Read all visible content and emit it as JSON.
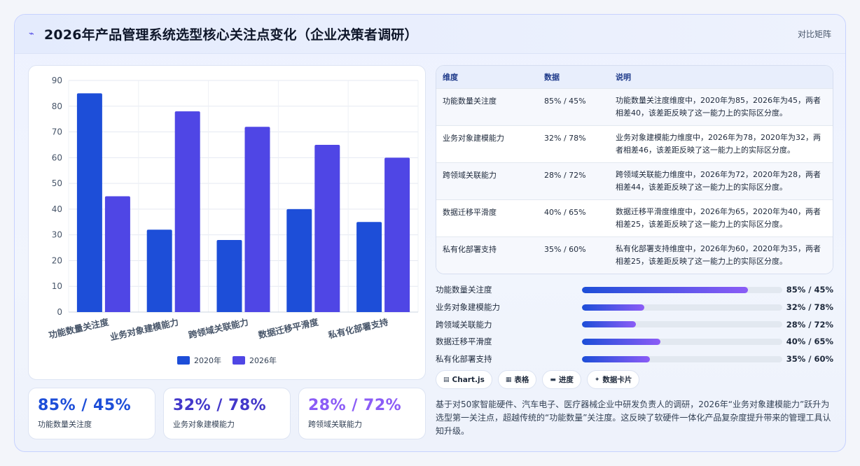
{
  "header": {
    "icon": "bolt-icon",
    "title": "2026年产品管理系统选型核心关注点变化（企业决策者调研）",
    "tag": "对比矩阵"
  },
  "chart_data": {
    "type": "bar",
    "categories": [
      "功能数量关注度",
      "业务对象建模能力",
      "跨领域关联能力",
      "数据迁移平滑度",
      "私有化部署支持"
    ],
    "series": [
      {
        "name": "2020年",
        "values": [
          85,
          32,
          28,
          40,
          35
        ],
        "color": "#1d4ed8"
      },
      {
        "name": "2026年",
        "values": [
          45,
          78,
          72,
          65,
          60
        ],
        "color": "#4f46e5"
      }
    ],
    "ylim": [
      0,
      90
    ],
    "yticks": [
      0,
      10,
      20,
      30,
      40,
      50,
      60,
      70,
      80,
      90
    ],
    "grid": true,
    "legend_position": "bottom"
  },
  "stats": [
    {
      "value": "85% / 45%",
      "label": "功能数量关注度",
      "color": "#1d4ed8"
    },
    {
      "value": "32% / 78%",
      "label": "业务对象建模能力",
      "color": "#4338ca"
    },
    {
      "value": "28% / 72%",
      "label": "跨领域关联能力",
      "color": "#8b5cf6"
    }
  ],
  "table": {
    "headers": [
      "维度",
      "数据",
      "说明"
    ],
    "rows": [
      {
        "dim": "功能数量关注度",
        "data": "85% / 45%",
        "desc": "功能数量关注度维度中，2020年为85，2026年为45，两者相差40，该差距反映了这一能力上的实际区分度。"
      },
      {
        "dim": "业务对象建模能力",
        "data": "32% / 78%",
        "desc": "业务对象建模能力维度中，2026年为78，2020年为32，两者相差46，该差距反映了这一能力上的实际区分度。"
      },
      {
        "dim": "跨领域关联能力",
        "data": "28% / 72%",
        "desc": "跨领域关联能力维度中，2026年为72，2020年为28，两者相差44，该差距反映了这一能力上的实际区分度。"
      },
      {
        "dim": "数据迁移平滑度",
        "data": "40% / 65%",
        "desc": "数据迁移平滑度维度中，2026年为65，2020年为40，两者相差25，该差距反映了这一能力上的实际区分度。"
      },
      {
        "dim": "私有化部署支持",
        "data": "35% / 60%",
        "desc": "私有化部署支持维度中，2026年为60，2020年为35，两者相差25，该差距反映了这一能力上的实际区分度。"
      }
    ]
  },
  "progress": [
    {
      "label": "功能数量关注度",
      "text": "85% / 45%",
      "level": 0.83
    },
    {
      "label": "业务对象建模能力",
      "text": "32% / 78%",
      "level": 0.31
    },
    {
      "label": "跨领域关联能力",
      "text": "28% / 72%",
      "level": 0.27
    },
    {
      "label": "数据迁移平滑度",
      "text": "40% / 65%",
      "level": 0.39
    },
    {
      "label": "私有化部署支持",
      "text": "35% / 60%",
      "level": 0.34
    }
  ],
  "chips": [
    {
      "icon": "chart-icon",
      "glyph": "▤",
      "label": "Chart.js"
    },
    {
      "icon": "table-icon",
      "glyph": "▦",
      "label": "表格"
    },
    {
      "icon": "progress-icon",
      "glyph": "▬",
      "label": "进度"
    },
    {
      "icon": "sparkle-icon",
      "glyph": "✦",
      "label": "数据卡片"
    }
  ],
  "note": "基于对50家智能硬件、汽车电子、医疗器械企业中研发负责人的调研，2026年“业务对象建模能力”跃升为选型第一关注点，超越传统的“功能数量”关注度。这反映了软硬件一体化产品复杂度提升带来的管理工具认知升级。"
}
